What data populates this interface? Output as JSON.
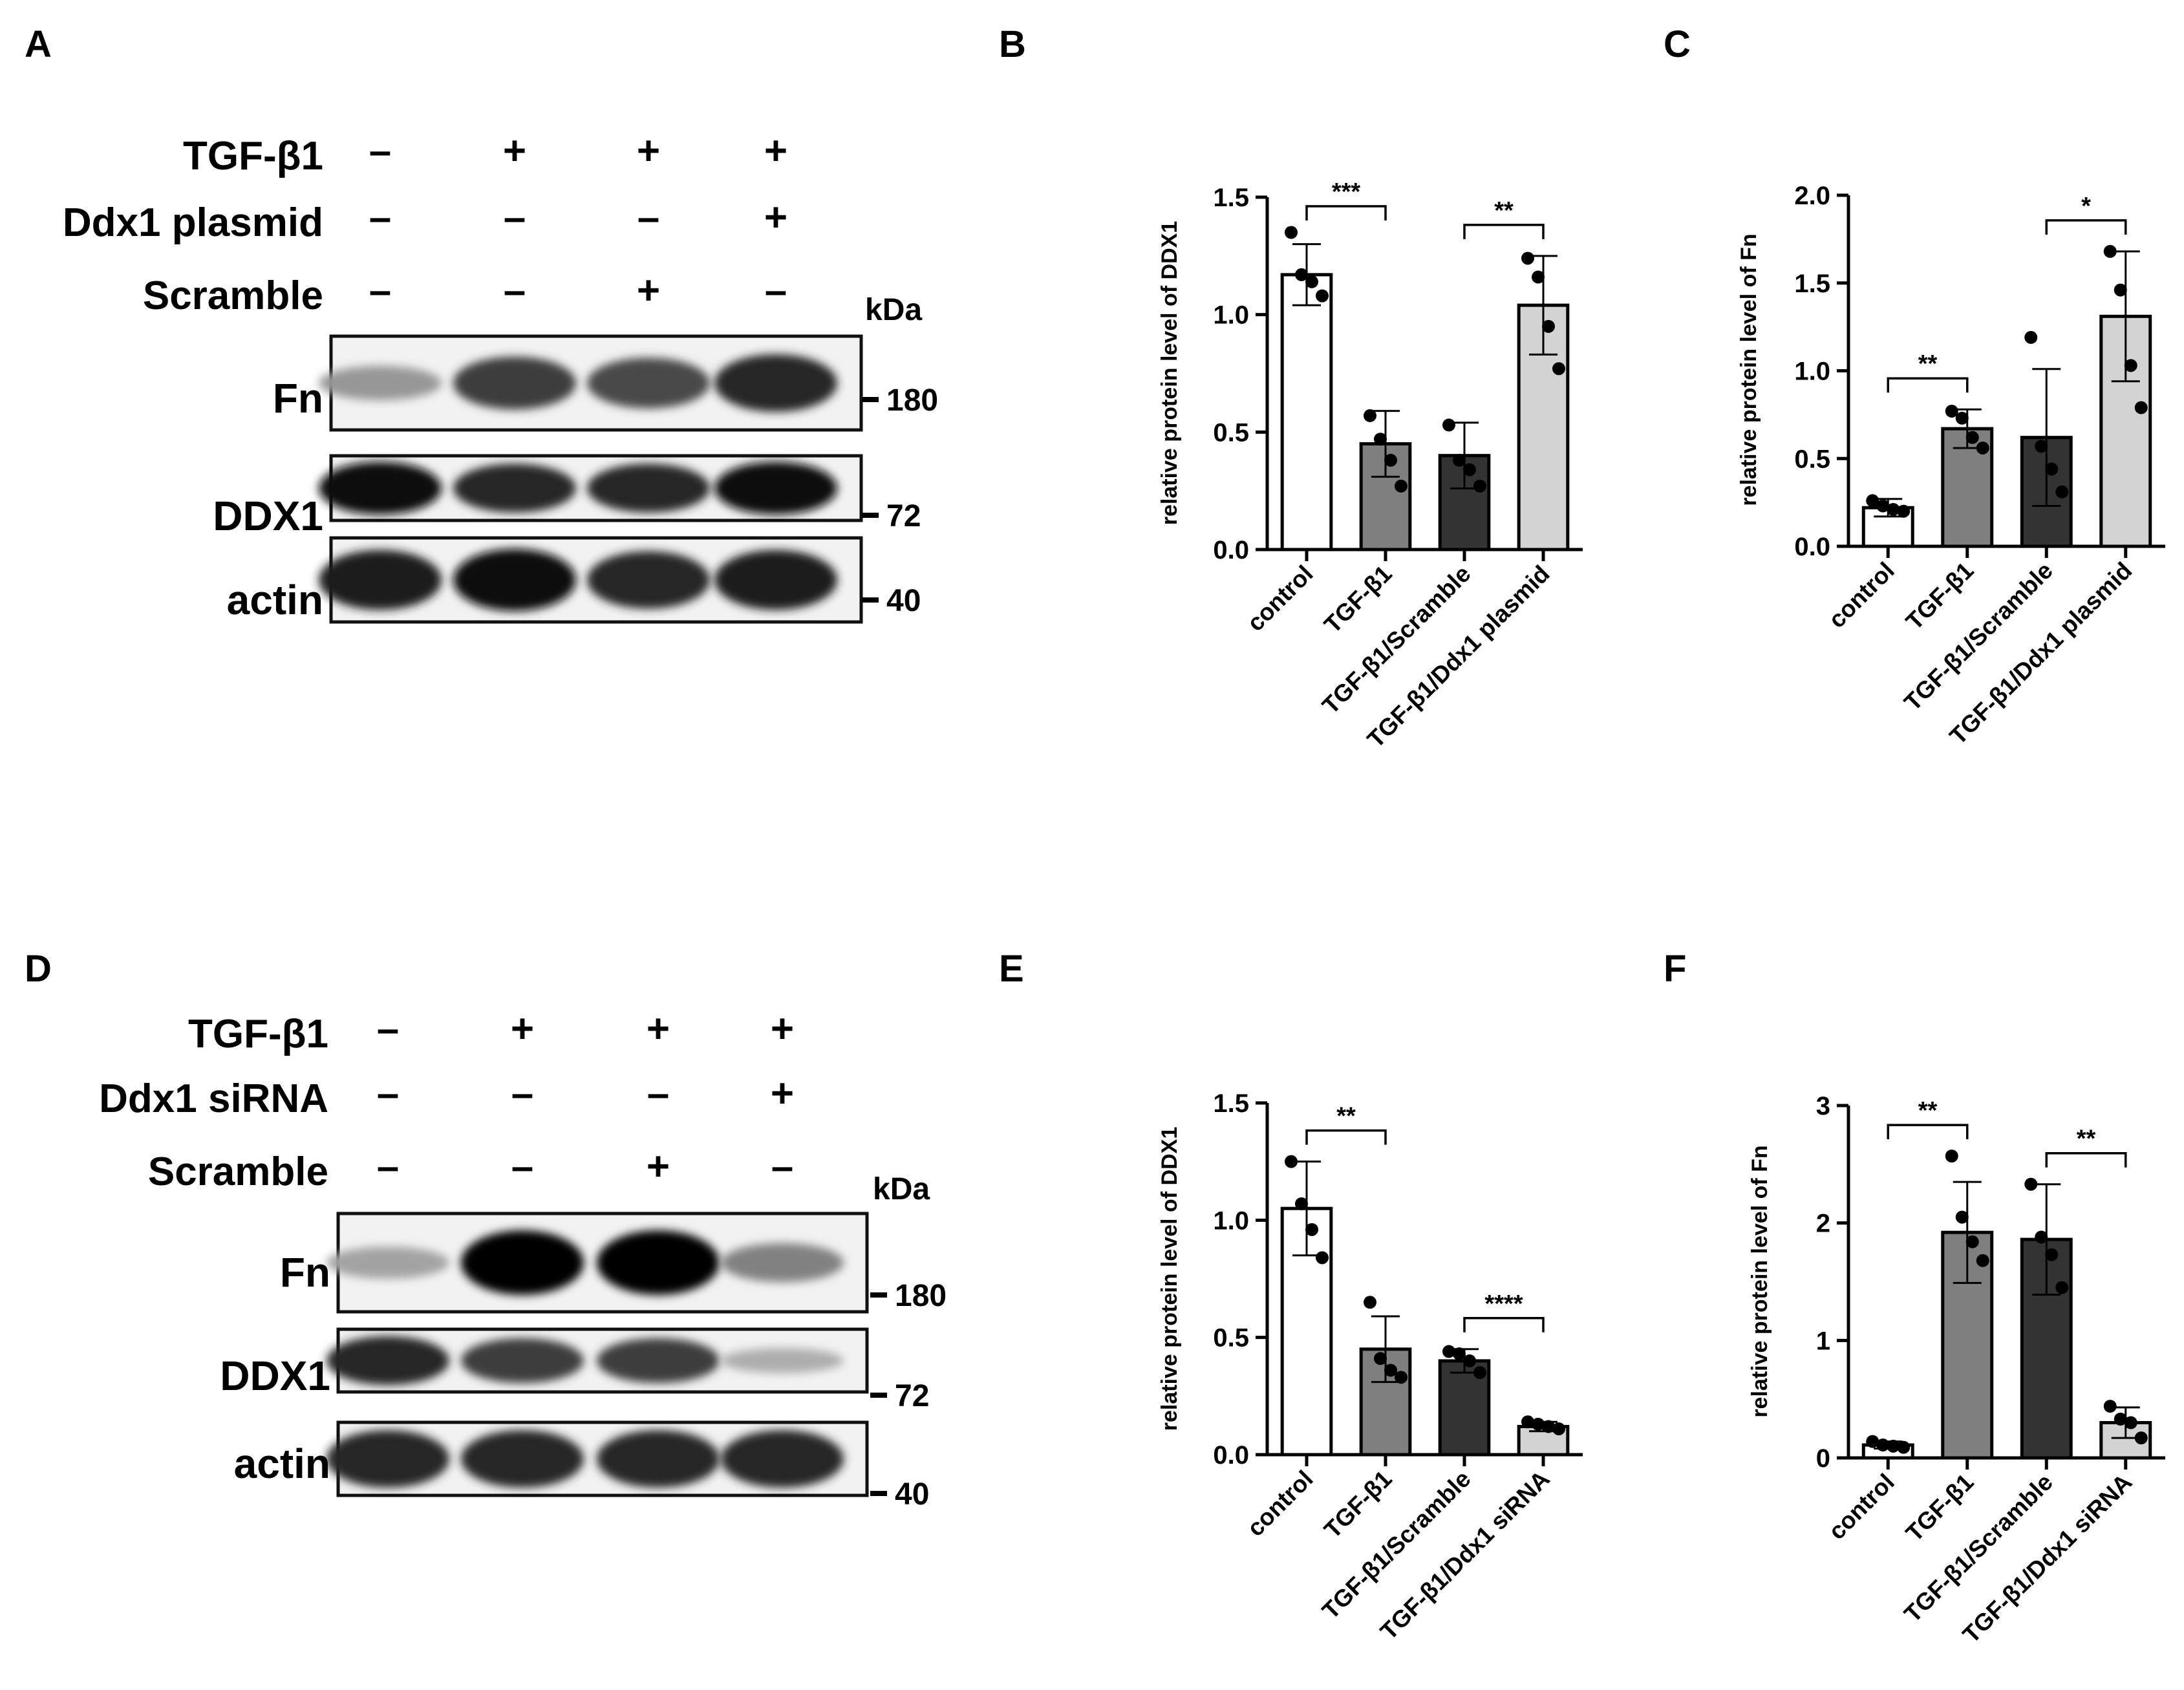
{
  "blots": [
    {
      "panel_label": "A",
      "conditions": [
        {
          "label": "TGF-β1",
          "signs": [
            "–",
            "+",
            "+",
            "+"
          ]
        },
        {
          "label": "Ddx1 plasmid",
          "signs": [
            "–",
            "–",
            "–",
            "+"
          ]
        },
        {
          "label": "Scramble",
          "signs": [
            "–",
            "–",
            "+",
            "–"
          ]
        }
      ],
      "kda_label": "kDa",
      "bands": [
        {
          "label": "Fn",
          "marker": "180",
          "intensities": [
            0.35,
            0.75,
            0.7,
            0.85
          ]
        },
        {
          "label": "DDX1",
          "marker": "72",
          "intensities": [
            0.95,
            0.85,
            0.85,
            0.95
          ]
        },
        {
          "label": "actin",
          "marker": "40",
          "intensities": [
            0.9,
            0.95,
            0.85,
            0.9
          ]
        }
      ]
    },
    {
      "panel_label": "D",
      "conditions": [
        {
          "label": "TGF-β1",
          "signs": [
            "–",
            "+",
            "+",
            "+"
          ]
        },
        {
          "label": "Ddx1 siRNA",
          "signs": [
            "–",
            "–",
            "–",
            "+"
          ]
        },
        {
          "label": "Scramble",
          "signs": [
            "–",
            "–",
            "+",
            "–"
          ]
        }
      ],
      "kda_label": "kDa",
      "bands": [
        {
          "label": "Fn",
          "marker": "180",
          "intensities": [
            0.3,
            1.0,
            1.0,
            0.45
          ]
        },
        {
          "label": "DDX1",
          "marker": "72",
          "intensities": [
            0.85,
            0.75,
            0.75,
            0.25
          ]
        },
        {
          "label": "actin",
          "marker": "40",
          "intensities": [
            0.85,
            0.85,
            0.85,
            0.85
          ]
        }
      ]
    }
  ],
  "chart_data": [
    {
      "panel_label": "B",
      "type": "bar",
      "ylabel": "relative protein level of DDX1",
      "categories": [
        "control",
        "TGF-β1",
        "TGF-β1/Scramble",
        "TGF-β1/Ddx1 plasmid"
      ],
      "values": [
        1.17,
        0.45,
        0.4,
        1.04
      ],
      "errors": [
        0.13,
        0.14,
        0.14,
        0.21
      ],
      "points": [
        [
          1.35,
          1.17,
          1.14,
          1.08
        ],
        [
          0.57,
          0.47,
          0.38,
          0.27
        ],
        [
          0.53,
          0.38,
          0.34,
          0.27
        ],
        [
          1.24,
          1.16,
          0.95,
          0.77
        ]
      ],
      "bar_colors": [
        "#ffffff",
        "#7f7f7f",
        "#333333",
        "#d3d3d3"
      ],
      "ylim": [
        0,
        1.5
      ],
      "yticks": [
        "0.0",
        "0.5",
        "1.0",
        "1.5"
      ],
      "significance": [
        {
          "from": 0,
          "to": 1,
          "label": "***"
        },
        {
          "from": 2,
          "to": 3,
          "label": "**"
        }
      ]
    },
    {
      "panel_label": "C",
      "type": "bar",
      "ylabel": "relative protein level of Fn",
      "categories": [
        "control",
        "TGF-β1",
        "TGF-β1/Scramble",
        "TGF-β1/Ddx1 plasmid"
      ],
      "values": [
        0.22,
        0.67,
        0.62,
        1.31
      ],
      "errors": [
        0.05,
        0.11,
        0.39,
        0.37
      ],
      "points": [
        [
          0.26,
          0.23,
          0.21,
          0.2
        ],
        [
          0.77,
          0.73,
          0.62,
          0.56
        ],
        [
          1.19,
          0.57,
          0.44,
          0.31
        ],
        [
          1.68,
          1.46,
          1.03,
          0.79
        ]
      ],
      "bar_colors": [
        "#ffffff",
        "#7f7f7f",
        "#333333",
        "#d3d3d3"
      ],
      "ylim": [
        0,
        2.0
      ],
      "yticks": [
        "0.0",
        "0.5",
        "1.0",
        "1.5",
        "2.0"
      ],
      "significance": [
        {
          "from": 0,
          "to": 1,
          "label": "**"
        },
        {
          "from": 2,
          "to": 3,
          "label": "*"
        }
      ]
    },
    {
      "panel_label": "E",
      "type": "bar",
      "ylabel": "relative protein level of DDX1",
      "categories": [
        "control",
        "TGF-β1",
        "TGF-β1/Scramble",
        "TGF-β1/Ddx1 siRNA"
      ],
      "values": [
        1.05,
        0.45,
        0.4,
        0.12
      ],
      "errors": [
        0.2,
        0.14,
        0.05,
        0.02
      ],
      "points": [
        [
          1.25,
          1.07,
          0.96,
          0.84
        ],
        [
          0.65,
          0.41,
          0.36,
          0.33
        ],
        [
          0.44,
          0.43,
          0.4,
          0.35
        ],
        [
          0.14,
          0.13,
          0.12,
          0.11
        ]
      ],
      "bar_colors": [
        "#ffffff",
        "#7f7f7f",
        "#333333",
        "#d3d3d3"
      ],
      "ylim": [
        0,
        1.5
      ],
      "yticks": [
        "0.0",
        "0.5",
        "1.0",
        "1.5"
      ],
      "significance": [
        {
          "from": 0,
          "to": 1,
          "label": "**"
        },
        {
          "from": 2,
          "to": 3,
          "label": "****"
        }
      ]
    },
    {
      "panel_label": "F",
      "type": "bar",
      "ylabel": "relative protein level of Fn",
      "categories": [
        "control",
        "TGF-β1",
        "TGF-β1/Scramble",
        "TGF-β1/Ddx1 siRNA"
      ],
      "values": [
        0.11,
        1.92,
        1.86,
        0.3
      ],
      "errors": [
        0.03,
        0.43,
        0.47,
        0.13
      ],
      "points": [
        [
          0.14,
          0.11,
          0.1,
          0.09
        ],
        [
          2.57,
          2.05,
          1.84,
          1.68
        ],
        [
          2.33,
          1.88,
          1.73,
          1.45
        ],
        [
          0.44,
          0.33,
          0.3,
          0.17
        ]
      ],
      "bar_colors": [
        "#ffffff",
        "#7f7f7f",
        "#333333",
        "#d3d3d3"
      ],
      "ylim": [
        0,
        3
      ],
      "yticks": [
        "0",
        "1",
        "2",
        "3"
      ],
      "significance": [
        {
          "from": 0,
          "to": 1,
          "label": "**"
        },
        {
          "from": 2,
          "to": 3,
          "label": "**"
        }
      ]
    }
  ]
}
